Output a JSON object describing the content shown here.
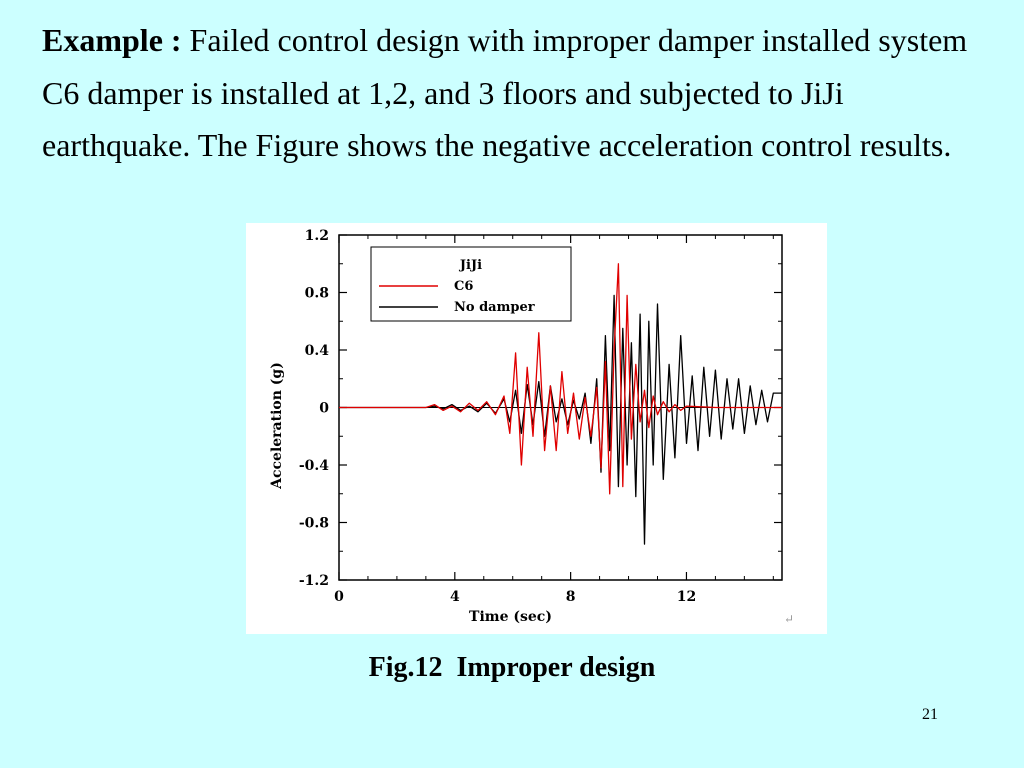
{
  "slide": {
    "lead": "Example :",
    "body": " Failed control design with improper damper installed system C6 damper is installed at 1,2, and 3 floors and subjected to JiJi earthquake. The Figure shows the negative acceleration control results.",
    "caption": "Fig.12  Improper design",
    "page_number": "21",
    "mark_glyph": "↵"
  },
  "chart_data": {
    "type": "line",
    "xlabel": "Time (sec)",
    "ylabel": "Acceleration (g)",
    "xlim": [
      0,
      15.3
    ],
    "ylim": [
      -1.2,
      1.2
    ],
    "xticks": [
      0,
      4,
      8,
      12
    ],
    "yticks": [
      -1.2,
      -0.8,
      -0.4,
      0,
      0.4,
      0.8,
      1.2
    ],
    "ytick_labels": [
      "-1.2",
      "-0.8",
      "-0.4",
      "0",
      "0.4",
      "0.8",
      "1.2"
    ],
    "grid": false,
    "legend": {
      "placement": "top-left",
      "title": "JiJi",
      "entries": [
        {
          "label": "C6",
          "color": "#e00000"
        },
        {
          "label": "No damper",
          "color": "#000000"
        }
      ]
    },
    "series": [
      {
        "name": "C6",
        "color": "#e00000",
        "x": [
          0,
          3,
          3.3,
          3.6,
          3.9,
          4.2,
          4.5,
          4.8,
          5.1,
          5.4,
          5.7,
          5.9,
          6.1,
          6.3,
          6.5,
          6.7,
          6.9,
          7.1,
          7.3,
          7.5,
          7.7,
          7.9,
          8.1,
          8.3,
          8.5,
          8.7,
          8.9,
          9.05,
          9.2,
          9.35,
          9.5,
          9.65,
          9.8,
          9.95,
          10.1,
          10.25,
          10.4,
          10.55,
          10.7,
          10.85,
          11.0,
          11.2,
          11.4,
          11.6,
          11.8,
          12.0,
          12.5,
          13.0,
          13.5,
          14.0,
          14.5,
          15.3
        ],
        "y": [
          0,
          0,
          0.02,
          -0.02,
          0.01,
          -0.03,
          0.03,
          -0.02,
          0.04,
          -0.05,
          0.08,
          -0.18,
          0.38,
          -0.4,
          0.28,
          -0.2,
          0.52,
          -0.3,
          0.15,
          -0.3,
          0.25,
          -0.18,
          0.1,
          -0.22,
          0.07,
          -0.2,
          0.14,
          -0.42,
          0.32,
          -0.6,
          0.4,
          1.0,
          -0.55,
          0.78,
          -0.22,
          0.3,
          -0.1,
          0.12,
          -0.14,
          0.08,
          -0.05,
          0.04,
          -0.03,
          0.02,
          -0.02,
          0.01,
          0.005,
          0,
          0,
          0,
          0,
          0
        ]
      },
      {
        "name": "No damper",
        "color": "#000000",
        "x": [
          0,
          3,
          3.3,
          3.6,
          3.9,
          4.2,
          4.5,
          4.8,
          5.1,
          5.4,
          5.7,
          5.9,
          6.1,
          6.3,
          6.5,
          6.7,
          6.9,
          7.1,
          7.3,
          7.5,
          7.7,
          7.9,
          8.1,
          8.3,
          8.5,
          8.7,
          8.9,
          9.05,
          9.2,
          9.35,
          9.5,
          9.65,
          9.8,
          9.95,
          10.1,
          10.25,
          10.4,
          10.55,
          10.7,
          10.85,
          11.0,
          11.2,
          11.4,
          11.6,
          11.8,
          12.0,
          12.2,
          12.4,
          12.6,
          12.8,
          13.0,
          13.2,
          13.4,
          13.6,
          13.8,
          14.0,
          14.2,
          14.4,
          14.6,
          14.8,
          15.0,
          15.3
        ],
        "y": [
          0,
          0,
          0.01,
          -0.01,
          0.02,
          -0.02,
          0.01,
          -0.03,
          0.03,
          -0.04,
          0.06,
          -0.1,
          0.12,
          -0.18,
          0.16,
          -0.12,
          0.18,
          -0.2,
          0.15,
          -0.1,
          0.06,
          -0.12,
          0.05,
          -0.08,
          0.1,
          -0.25,
          0.2,
          -0.45,
          0.5,
          -0.3,
          0.78,
          -0.55,
          0.55,
          -0.4,
          0.45,
          -0.62,
          0.65,
          -0.95,
          0.6,
          -0.4,
          0.72,
          -0.5,
          0.3,
          -0.35,
          0.5,
          -0.25,
          0.22,
          -0.3,
          0.28,
          -0.2,
          0.26,
          -0.22,
          0.2,
          -0.15,
          0.2,
          -0.18,
          0.15,
          -0.12,
          0.12,
          -0.1,
          0.1,
          0.1
        ]
      }
    ]
  }
}
